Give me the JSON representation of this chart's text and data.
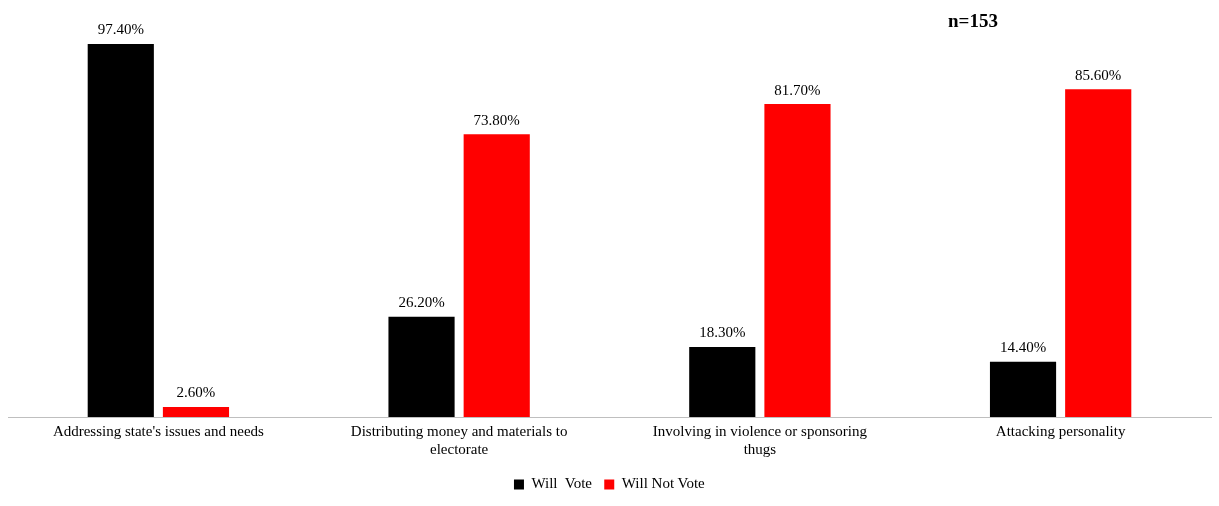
{
  "chart_data": {
    "type": "bar",
    "categories": [
      "Addressing state's issues and needs",
      "Distributing money and materials to electorate",
      "Involving in violence or sponsoring thugs",
      "Attacking personality"
    ],
    "series": [
      {
        "name": "Will  Vote",
        "color": "#000000",
        "values": [
          97.4,
          26.2,
          18.3,
          14.4
        ],
        "value_labels": [
          "97.40%",
          "26.20%",
          "18.30%",
          "14.40%"
        ]
      },
      {
        "name": "Will Not Vote",
        "color": "#ff0000",
        "values": [
          2.6,
          73.8,
          81.7,
          85.6
        ],
        "value_labels": [
          "2.60%",
          "73.80%",
          "81.70%",
          "85.60%"
        ]
      }
    ],
    "tick_labels": "x",
    "grid": false,
    "legend": "bottom",
    "annotations": [
      "n=153"
    ]
  }
}
